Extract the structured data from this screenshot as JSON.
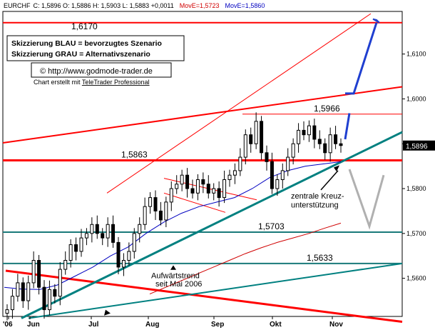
{
  "header": {
    "symbol": "EURCHF",
    "quote": "C: 1,5896 O: 1,5886 H: 1,5903 L: 1,5883 +0,0011",
    "ma1_label": "MovE=1,5723",
    "ma2_label": "MovE=1,5860"
  },
  "legend": {
    "blue_line": "Skizzierung BLAU = bevorzugtes Szenario",
    "grey_line": "Skizzierung GRAU = Alternativszenario",
    "url": "© http://www.godmode-trader.de",
    "credit_prefix": "Chart erstellt mit ",
    "credit_link": "TeleTrader Professional"
  },
  "colors": {
    "candles": "#000000",
    "support_resistance": "#ff0000",
    "channel": "#ff0000",
    "uptrend": "#008080",
    "horizontal_teal": "#1a7a7a",
    "ma_short": "#0000c0",
    "ma_long": "#d00000",
    "scenario_blue": "#1f3fd0",
    "scenario_grey": "#b0b0b0",
    "last_price_badge": "#000000",
    "header_ma1": "#d00000",
    "header_ma2": "#0000c0"
  },
  "chart_data": {
    "type": "candlestick",
    "instrument": "EURCHF",
    "x_ticks": [
      "'06",
      "Jun",
      "Jul",
      "Aug",
      "Sep",
      "Okt",
      "Nov"
    ],
    "y_ticks": [
      "1,5600",
      "1,5700",
      "1,5800",
      "1,5900",
      "1,6000",
      "1,6100"
    ],
    "ylim": [
      1.5515,
      1.6195
    ],
    "last_price": 1.5896,
    "last_price_label": "1,5896",
    "levels": [
      {
        "label": "1,6170",
        "value": 1.617
      },
      {
        "label": "1,5966",
        "value": 1.5966
      },
      {
        "label": "1,5863",
        "value": 1.5863
      },
      {
        "label": "1,5703",
        "value": 1.5703
      },
      {
        "label": "1,5633",
        "value": 1.5633
      }
    ],
    "annotations": [
      "zentrale Kreuz-",
      "unterstützung",
      "Aufwärtstrend",
      "seit Mai 2006"
    ],
    "candles_close": [
      1.553,
      1.556,
      1.559,
      1.555,
      1.559,
      1.564,
      1.558,
      1.553,
      1.5575,
      1.556,
      1.562,
      1.564,
      1.5675,
      1.566,
      1.569,
      1.57,
      1.572,
      1.57,
      1.569,
      1.572,
      1.568,
      1.5625,
      1.564,
      1.566,
      1.57,
      1.572,
      1.576,
      1.578,
      1.575,
      1.573,
      1.577,
      1.58,
      1.581,
      1.583,
      1.58,
      1.579,
      1.582,
      1.581,
      1.579,
      1.58,
      1.578,
      1.582,
      1.583,
      1.584,
      1.587,
      1.592,
      1.59,
      1.595,
      1.588,
      1.586,
      1.58,
      1.582,
      1.584,
      1.587,
      1.59,
      1.593,
      1.592,
      1.594,
      1.591,
      1.59,
      1.588,
      1.592,
      1.59,
      1.5896
    ],
    "ma_short_values": [
      1.558,
      1.5576,
      1.5575,
      1.5585,
      1.5605,
      1.5625,
      1.565,
      1.567,
      1.57,
      1.5725,
      1.5745,
      1.576,
      1.577,
      1.578,
      1.58,
      1.5825,
      1.584,
      1.585,
      1.5855,
      1.586
    ],
    "ma_long_values": [
      1.5565,
      1.558,
      1.5595,
      1.561,
      1.5625,
      1.564,
      1.5655,
      1.5668,
      1.568,
      1.569,
      1.57,
      1.5712,
      1.5723
    ]
  }
}
